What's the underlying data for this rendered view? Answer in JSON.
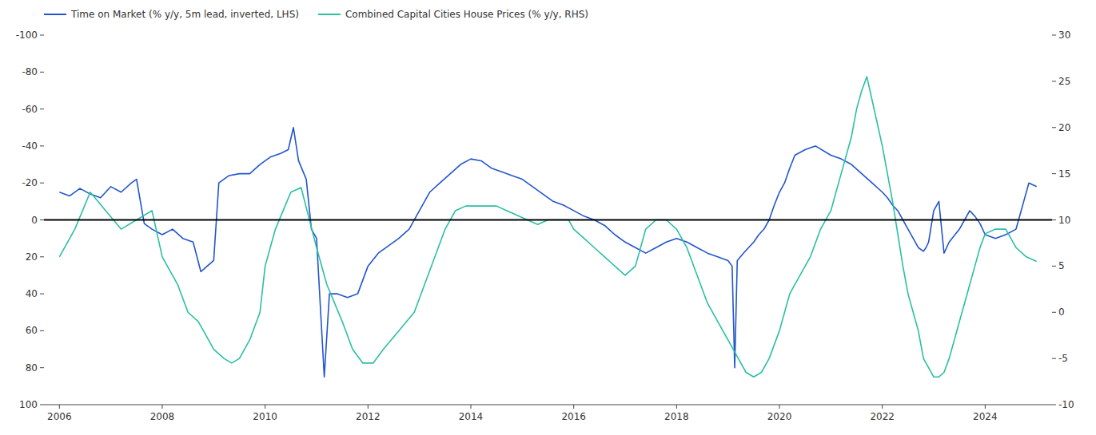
{
  "chart_data": {
    "type": "line",
    "xlim": [
      2005.7,
      2025.3
    ],
    "xticks": [
      2006,
      2008,
      2010,
      2012,
      2014,
      2016,
      2018,
      2020,
      2022,
      2024
    ],
    "ylim": [
      100,
      -100
    ],
    "yticks": [
      100,
      80,
      60,
      40,
      20,
      0,
      -20,
      -40,
      -60,
      -80,
      -100
    ],
    "y2lim": [
      -10,
      30
    ],
    "y2ticks": [
      -10,
      -5,
      0,
      5,
      10,
      15,
      20,
      25,
      30
    ],
    "hlines": [
      0
    ],
    "grid": false,
    "legend": "upper left",
    "series": [
      {
        "name": "Time on Market (% y/y, 5m lead, inverted, LHS)",
        "color": "#2255cc",
        "axis": "y",
        "x": [
          2006.0,
          2006.2,
          2006.4,
          2006.6,
          2006.8,
          2007.0,
          2007.2,
          2007.4,
          2007.5,
          2007.65,
          2007.8,
          2008.0,
          2008.2,
          2008.4,
          2008.6,
          2008.75,
          2009.0,
          2009.1,
          2009.3,
          2009.5,
          2009.7,
          2009.9,
          2010.1,
          2010.3,
          2010.45,
          2010.55,
          2010.65,
          2010.8,
          2010.9,
          2011.0,
          2011.15,
          2011.25,
          2011.4,
          2011.6,
          2011.8,
          2012.0,
          2012.2,
          2012.4,
          2012.6,
          2012.8,
          2013.0,
          2013.2,
          2013.4,
          2013.6,
          2013.8,
          2014.0,
          2014.2,
          2014.4,
          2014.6,
          2014.8,
          2015.0,
          2015.2,
          2015.4,
          2015.6,
          2015.8,
          2016.0,
          2016.2,
          2016.4,
          2016.6,
          2016.8,
          2017.0,
          2017.2,
          2017.4,
          2017.6,
          2017.8,
          2018.0,
          2018.2,
          2018.4,
          2018.6,
          2018.8,
          2019.0,
          2019.08,
          2019.13,
          2019.18,
          2019.3,
          2019.4,
          2019.5,
          2019.6,
          2019.7,
          2019.8,
          2019.9,
          2020.0,
          2020.1,
          2020.2,
          2020.3,
          2020.5,
          2020.7,
          2021.0,
          2021.2,
          2021.4,
          2021.6,
          2021.8,
          2022.0,
          2022.1,
          2022.2,
          2022.3,
          2022.4,
          2022.5,
          2022.6,
          2022.7,
          2022.8,
          2022.85,
          2022.9,
          2023.0,
          2023.1,
          2023.2,
          2023.3,
          2023.5,
          2023.6,
          2023.7,
          2023.8,
          2023.9,
          2024.0,
          2024.2,
          2024.4,
          2024.6,
          2024.75,
          2024.85,
          2025.0
        ],
        "values": [
          -15,
          -13,
          -17,
          -14,
          -12,
          -18,
          -15,
          -20,
          -22,
          2,
          5,
          8,
          5,
          10,
          12,
          28,
          22,
          -20,
          -24,
          -25,
          -25,
          -30,
          -34,
          -36,
          -38,
          -50,
          -32,
          -22,
          5,
          10,
          85,
          40,
          40,
          42,
          40,
          25,
          18,
          14,
          10,
          5,
          -5,
          -15,
          -20,
          -25,
          -30,
          -33,
          -32,
          -28,
          -26,
          -24,
          -22,
          -18,
          -14,
          -10,
          -8,
          -5,
          -2,
          0,
          3,
          8,
          12,
          15,
          18,
          15,
          12,
          10,
          12,
          15,
          18,
          20,
          22,
          25,
          80,
          22,
          18,
          15,
          12,
          8,
          5,
          0,
          -8,
          -15,
          -20,
          -28,
          -35,
          -38,
          -40,
          -35,
          -33,
          -30,
          -25,
          -20,
          -15,
          -12,
          -8,
          -5,
          0,
          5,
          10,
          15,
          17,
          15,
          12,
          -5,
          -10,
          18,
          12,
          5,
          0,
          -5,
          -2,
          2,
          8,
          10,
          8,
          5,
          -10,
          -20,
          -18
        ]
      },
      {
        "name": "Combined Capital Cities House Prices (% y/y, RHS)",
        "color": "#2abfa3",
        "axis": "y2",
        "x": [
          2006.0,
          2006.3,
          2006.6,
          2006.9,
          2007.2,
          2007.5,
          2007.8,
          2008.0,
          2008.3,
          2008.5,
          2008.7,
          2008.9,
          2009.0,
          2009.2,
          2009.35,
          2009.5,
          2009.7,
          2009.9,
          2010.0,
          2010.2,
          2010.35,
          2010.5,
          2010.7,
          2011.0,
          2011.2,
          2011.5,
          2011.7,
          2011.9,
          2012.1,
          2012.3,
          2012.6,
          2012.9,
          2013.1,
          2013.3,
          2013.5,
          2013.7,
          2013.9,
          2014.1,
          2014.3,
          2014.5,
          2014.7,
          2014.9,
          2015.1,
          2015.3,
          2015.5,
          2015.7,
          2015.9,
          2016.0,
          2016.2,
          2016.4,
          2016.6,
          2016.8,
          2017.0,
          2017.2,
          2017.4,
          2017.6,
          2017.8,
          2018.0,
          2018.2,
          2018.4,
          2018.6,
          2018.8,
          2019.0,
          2019.2,
          2019.35,
          2019.5,
          2019.65,
          2019.8,
          2020.0,
          2020.1,
          2020.2,
          2020.4,
          2020.6,
          2020.8,
          2021.0,
          2021.2,
          2021.4,
          2021.5,
          2021.6,
          2021.7,
          2021.8,
          2022.0,
          2022.2,
          2022.4,
          2022.5,
          2022.6,
          2022.7,
          2022.8,
          2022.9,
          2023.0,
          2023.1,
          2023.2,
          2023.3,
          2023.4,
          2023.5,
          2023.6,
          2023.7,
          2023.8,
          2023.9,
          2024.0,
          2024.2,
          2024.4,
          2024.5,
          2024.6,
          2024.8,
          2025.0
        ],
        "values": [
          6,
          9,
          13,
          11,
          9,
          10,
          11,
          6,
          3,
          0,
          -1,
          -3,
          -4,
          -5,
          -5.5,
          -5,
          -3,
          0,
          5,
          9,
          11,
          13,
          13.5,
          7,
          3,
          -1,
          -4,
          -5.5,
          -5.5,
          -4,
          -2,
          0,
          3,
          6,
          9,
          11,
          11.5,
          11.5,
          11.5,
          11.5,
          11,
          10.5,
          10,
          9.5,
          10,
          10,
          10,
          9,
          8,
          7,
          6,
          5,
          4,
          5,
          9,
          10,
          10,
          9,
          7,
          4,
          1,
          -1,
          -3,
          -5,
          -6.5,
          -7,
          -6.5,
          -5,
          -2,
          0,
          2,
          4,
          6,
          9,
          11,
          15,
          19,
          22,
          24,
          25.5,
          23,
          18,
          12,
          5,
          2,
          0,
          -2,
          -5,
          -6,
          -7,
          -7,
          -6.5,
          -5,
          -3,
          -1,
          1,
          3,
          5,
          7,
          8.5,
          9,
          9,
          8,
          7,
          6,
          5.5
        ]
      }
    ]
  }
}
